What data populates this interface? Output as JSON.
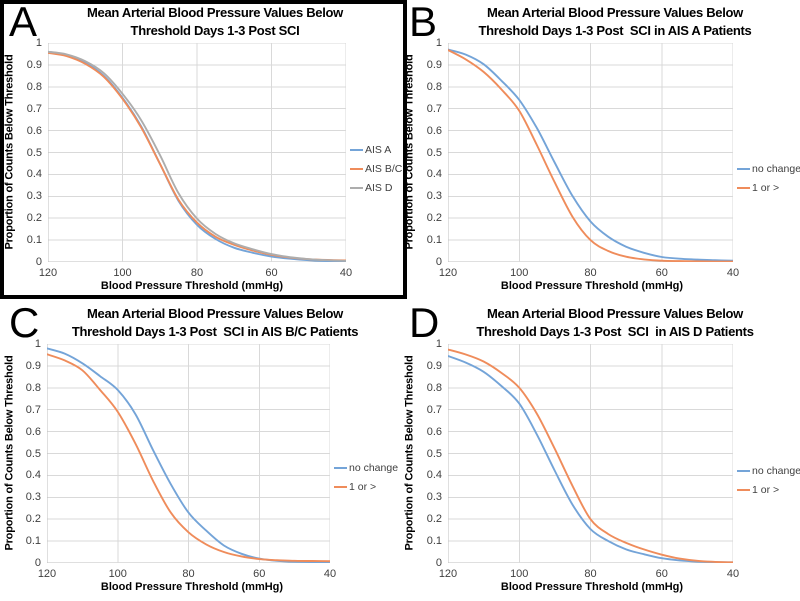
{
  "figure": {
    "x_axis_title": "Blood Pressure Threshold (mmHg)",
    "y_axis_title": "Proportion of Counts Below Threshold",
    "x_ticks": [
      "120",
      "100",
      "80",
      "60",
      "40"
    ],
    "y_ticks": [
      "1",
      "0.9",
      "0.8",
      "0.7",
      "0.6",
      "0.5",
      "0.4",
      "0.3",
      "0.2",
      "0.1",
      "0"
    ],
    "colors": {
      "blue": "#74A4D8",
      "orange": "#EF8C5B",
      "gray": "#ADADAD",
      "gridline": "#D9D9D9",
      "axis_line": "#BFBFBF",
      "tick_text": "#3F3F3F"
    }
  },
  "chart_data": [
    {
      "panel": "A",
      "type": "line",
      "title_line1": "Mean Arterial Blood Pressure Values Below",
      "title_line2": "Threshold Days 1-3 Post SCI",
      "xlabel": "Blood Pressure Threshold (mmHg)",
      "ylabel": "Proportion of Counts Below Threshold",
      "xlim": [
        120,
        40
      ],
      "ylim": [
        0,
        1
      ],
      "x_reversed": true,
      "grid": true,
      "legend_position": "right",
      "x": [
        120,
        115,
        110,
        105,
        100,
        95,
        90,
        85,
        80,
        75,
        70,
        65,
        60,
        55,
        50,
        45,
        40
      ],
      "series": [
        {
          "name": "AIS A",
          "color_key": "blue",
          "values": [
            0.96,
            0.945,
            0.91,
            0.85,
            0.75,
            0.62,
            0.45,
            0.28,
            0.17,
            0.105,
            0.065,
            0.042,
            0.025,
            0.015,
            0.008,
            0.004,
            0.002
          ]
        },
        {
          "name": "AIS B/C",
          "color_key": "orange",
          "values": [
            0.955,
            0.94,
            0.905,
            0.845,
            0.745,
            0.615,
            0.45,
            0.285,
            0.18,
            0.115,
            0.078,
            0.052,
            0.033,
            0.02,
            0.013,
            0.009,
            0.007
          ]
        },
        {
          "name": "AIS D",
          "color_key": "gray",
          "values": [
            0.96,
            0.948,
            0.917,
            0.862,
            0.768,
            0.648,
            0.49,
            0.315,
            0.198,
            0.128,
            0.085,
            0.058,
            0.036,
            0.022,
            0.013,
            0.008,
            0.005
          ]
        }
      ]
    },
    {
      "panel": "B",
      "type": "line",
      "title_line1": "Mean Arterial Blood Pressure Values Below",
      "title_line2": "Threshold Days 1-3 Post  SCI in AIS A Patients",
      "xlabel": "Blood Pressure Threshold (mmHg)",
      "ylabel": "Proportion of Counts Below Threshold",
      "xlim": [
        120,
        40
      ],
      "ylim": [
        0,
        1
      ],
      "x_reversed": true,
      "grid": true,
      "legend_position": "right",
      "x": [
        120,
        115,
        110,
        105,
        100,
        95,
        90,
        85,
        80,
        75,
        70,
        65,
        60,
        55,
        50,
        45,
        40
      ],
      "series": [
        {
          "name": "no change",
          "color_key": "blue",
          "values": [
            0.97,
            0.947,
            0.903,
            0.828,
            0.74,
            0.61,
            0.452,
            0.3,
            0.185,
            0.115,
            0.07,
            0.042,
            0.023,
            0.015,
            0.011,
            0.008,
            0.006
          ]
        },
        {
          "name": "1 or >",
          "color_key": "orange",
          "values": [
            0.968,
            0.925,
            0.868,
            0.788,
            0.69,
            0.532,
            0.362,
            0.205,
            0.1,
            0.05,
            0.024,
            0.012,
            0.006,
            0.004,
            0.003,
            0.002,
            0.002
          ]
        }
      ]
    },
    {
      "panel": "C",
      "type": "line",
      "title_line1": "Mean Arterial Blood Pressure Values Below",
      "title_line2": "Threshold Days 1-3 Post  SCI in AIS B/C Patients",
      "xlabel": "Blood Pressure Threshold (mmHg)",
      "ylabel": "Proportion of Counts Below Threshold",
      "xlim": [
        120,
        40
      ],
      "ylim": [
        0,
        1
      ],
      "x_reversed": true,
      "grid": true,
      "legend_position": "right",
      "x": [
        120,
        115,
        110,
        105,
        100,
        95,
        90,
        85,
        80,
        75,
        70,
        65,
        60,
        55,
        50,
        45,
        40
      ],
      "series": [
        {
          "name": "no change",
          "color_key": "blue",
          "values": [
            0.98,
            0.956,
            0.912,
            0.853,
            0.79,
            0.68,
            0.515,
            0.36,
            0.23,
            0.148,
            0.08,
            0.042,
            0.02,
            0.01,
            0.006,
            0.004,
            0.003
          ]
        },
        {
          "name": "1 or >",
          "color_key": "orange",
          "values": [
            0.953,
            0.925,
            0.88,
            0.79,
            0.69,
            0.545,
            0.375,
            0.23,
            0.14,
            0.085,
            0.05,
            0.03,
            0.018,
            0.013,
            0.01,
            0.009,
            0.008
          ]
        }
      ]
    },
    {
      "panel": "D",
      "type": "line",
      "title_line1": "Mean Arterial Blood Pressure Values Below",
      "title_line2": "Threshold Days 1-3 Post  SCI  in AIS D Patients",
      "xlabel": "Blood Pressure Threshold (mmHg)",
      "ylabel": "Proportion of Counts Below Threshold",
      "xlim": [
        120,
        40
      ],
      "ylim": [
        0,
        1
      ],
      "x_reversed": true,
      "grid": true,
      "legend_position": "right",
      "x": [
        120,
        115,
        110,
        105,
        100,
        95,
        90,
        85,
        80,
        75,
        70,
        65,
        60,
        55,
        50,
        45,
        40
      ],
      "series": [
        {
          "name": "no change",
          "color_key": "blue",
          "values": [
            0.945,
            0.915,
            0.873,
            0.808,
            0.728,
            0.585,
            0.42,
            0.265,
            0.155,
            0.1,
            0.062,
            0.04,
            0.022,
            0.012,
            0.007,
            0.004,
            0.003
          ]
        },
        {
          "name": "1 or >",
          "color_key": "orange",
          "values": [
            0.975,
            0.952,
            0.92,
            0.868,
            0.8,
            0.68,
            0.52,
            0.35,
            0.2,
            0.132,
            0.092,
            0.062,
            0.038,
            0.02,
            0.01,
            0.005,
            0.003
          ]
        }
      ]
    }
  ]
}
